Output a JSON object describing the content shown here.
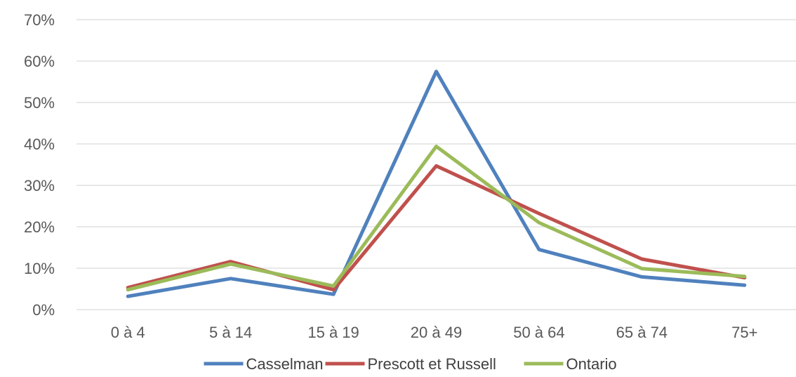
{
  "chart_data": {
    "type": "line",
    "categories": [
      "0 à 4",
      "5 à 14",
      "15 à 19",
      "20 à 49",
      "50 à 64",
      "65 à 74",
      "75+"
    ],
    "series": [
      {
        "name": "Casselman",
        "color": "#4f81bd",
        "values": [
          3.2,
          7.5,
          3.7,
          57.5,
          14.5,
          7.9,
          5.9
        ]
      },
      {
        "name": "Prescott et Russell",
        "color": "#c0504d",
        "values": [
          5.3,
          11.6,
          4.8,
          34.7,
          23.2,
          12.2,
          7.7
        ]
      },
      {
        "name": "Ontario",
        "color": "#9bbb59",
        "values": [
          4.8,
          11.0,
          5.7,
          39.4,
          21.0,
          9.9,
          8.0
        ]
      }
    ],
    "y_ticks": [
      "0%",
      "10%",
      "20%",
      "30%",
      "40%",
      "50%",
      "60%",
      "70%"
    ],
    "ylim": [
      0,
      70
    ],
    "grid": true,
    "legend_position": "bottom",
    "title": "",
    "xlabel": "",
    "ylabel": ""
  }
}
